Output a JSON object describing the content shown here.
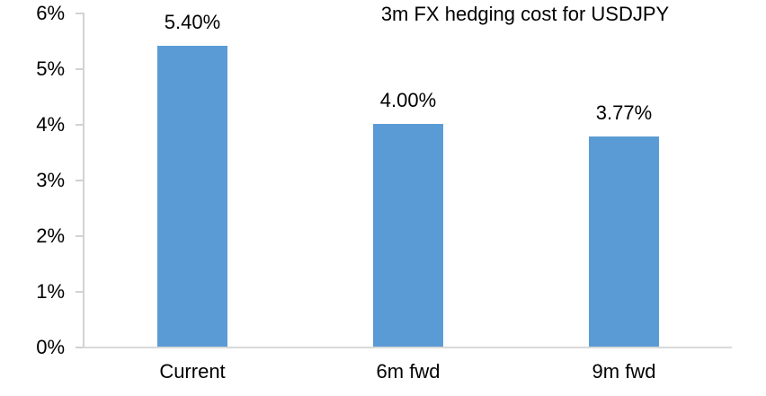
{
  "chart_data": {
    "type": "bar",
    "title": "3m FX hedging cost for USDJPY",
    "categories": [
      "Current",
      "6m fwd",
      "9m fwd"
    ],
    "values": [
      5.4,
      4.0,
      3.77
    ],
    "data_labels": [
      "5.40%",
      "4.00%",
      "3.77%"
    ],
    "ytick_labels": [
      "0%",
      "1%",
      "2%",
      "3%",
      "4%",
      "5%",
      "6%"
    ],
    "ytick_values": [
      0,
      1,
      2,
      3,
      4,
      5,
      6
    ],
    "ylim": [
      0,
      6
    ],
    "xlabel": "",
    "ylabel": "",
    "grid": "off",
    "legend": "none",
    "colors": {
      "bar": "#5B9BD5",
      "axis_line": "#D9D9D9",
      "tick": "#D2D2D2",
      "text": "#000000",
      "background": "#FFFFFF"
    }
  }
}
